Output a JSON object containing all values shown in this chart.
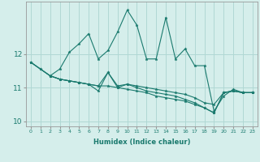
{
  "title": "",
  "xlabel": "Humidex (Indice chaleur)",
  "bg_color": "#d5eeeb",
  "grid_color": "#b0d8d4",
  "line_color": "#1a7a6e",
  "xlim": [
    -0.5,
    23.5
  ],
  "ylim": [
    9.85,
    13.55
  ],
  "yticks": [
    10,
    11,
    12
  ],
  "xticks": [
    0,
    1,
    2,
    3,
    4,
    5,
    6,
    7,
    8,
    9,
    10,
    11,
    12,
    13,
    14,
    15,
    16,
    17,
    18,
    19,
    20,
    21,
    22,
    23
  ],
  "lines": [
    {
      "x": [
        0,
        1,
        2,
        3,
        4,
        5,
        6,
        7,
        8,
        9,
        10,
        11,
        12,
        13,
        14,
        15,
        16,
        17,
        18,
        19,
        20,
        21,
        22,
        23
      ],
      "y": [
        11.75,
        11.55,
        11.35,
        11.55,
        12.05,
        12.3,
        12.6,
        11.85,
        12.1,
        12.65,
        13.3,
        12.85,
        11.85,
        11.85,
        13.08,
        11.85,
        12.15,
        11.65,
        11.65,
        10.3,
        10.75,
        10.95,
        10.85,
        10.85
      ]
    },
    {
      "x": [
        0,
        1,
        2,
        3,
        4,
        5,
        6,
        7,
        8,
        9,
        10,
        11,
        12,
        13,
        14,
        15,
        16,
        17,
        18,
        19,
        20,
        21,
        22,
        23
      ],
      "y": [
        11.75,
        11.55,
        11.35,
        11.25,
        11.2,
        11.15,
        11.1,
        11.05,
        11.45,
        11.05,
        11.1,
        11.05,
        11.0,
        10.95,
        10.9,
        10.85,
        10.8,
        10.7,
        10.55,
        10.5,
        10.85,
        10.9,
        10.85,
        10.85
      ]
    },
    {
      "x": [
        0,
        2,
        3,
        4,
        5,
        6,
        7,
        8,
        9,
        10,
        11,
        12,
        13,
        14,
        15,
        16,
        17,
        18,
        19,
        20,
        21,
        22,
        23
      ],
      "y": [
        11.75,
        11.35,
        11.25,
        11.2,
        11.15,
        11.1,
        11.05,
        11.05,
        11.0,
        10.95,
        10.9,
        10.85,
        10.75,
        10.7,
        10.65,
        10.6,
        10.5,
        10.4,
        10.25,
        10.85,
        10.9,
        10.85,
        10.85
      ]
    },
    {
      "x": [
        2,
        3,
        4,
        5,
        6,
        7,
        8,
        9,
        10,
        11,
        12,
        13,
        14,
        15,
        16,
        17,
        18,
        19,
        20,
        21,
        22,
        23
      ],
      "y": [
        11.35,
        11.25,
        11.2,
        11.15,
        11.1,
        10.9,
        11.45,
        11.0,
        11.1,
        11.0,
        10.9,
        10.85,
        10.8,
        10.75,
        10.65,
        10.55,
        10.4,
        10.25,
        10.85,
        10.9,
        10.85,
        10.85
      ]
    }
  ]
}
